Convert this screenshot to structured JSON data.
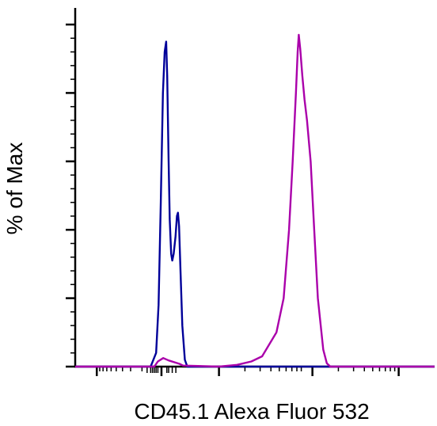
{
  "chart_data": {
    "type": "line",
    "xlabel": "CD45.1 Alexa Fluor 532",
    "ylabel": "% of Max",
    "x_scale": "biexponential",
    "ylim": [
      0,
      100
    ],
    "grid": false,
    "series": [
      {
        "color": "#000099",
        "points": [
          [
            0.0,
            0
          ],
          [
            0.18,
            0
          ],
          [
            0.21,
            0
          ],
          [
            0.225,
            4
          ],
          [
            0.232,
            18
          ],
          [
            0.238,
            48
          ],
          [
            0.244,
            80
          ],
          [
            0.249,
            92
          ],
          [
            0.253,
            95
          ],
          [
            0.256,
            85
          ],
          [
            0.26,
            60
          ],
          [
            0.263,
            43
          ],
          [
            0.267,
            33
          ],
          [
            0.27,
            31
          ],
          [
            0.274,
            33
          ],
          [
            0.279,
            38
          ],
          [
            0.283,
            44
          ],
          [
            0.286,
            45
          ],
          [
            0.289,
            41
          ],
          [
            0.293,
            28
          ],
          [
            0.298,
            12
          ],
          [
            0.305,
            2
          ],
          [
            0.312,
            0
          ],
          [
            1.0,
            0
          ]
        ]
      },
      {
        "color": "#AA00AA",
        "points": [
          [
            0.0,
            0
          ],
          [
            0.22,
            0
          ],
          [
            0.23,
            1.5
          ],
          [
            0.245,
            2.5
          ],
          [
            0.26,
            1.8
          ],
          [
            0.29,
            0.8
          ],
          [
            0.3,
            0.3
          ],
          [
            0.4,
            0
          ],
          [
            0.45,
            0.5
          ],
          [
            0.49,
            1.5
          ],
          [
            0.52,
            3
          ],
          [
            0.56,
            10
          ],
          [
            0.58,
            20
          ],
          [
            0.595,
            40
          ],
          [
            0.605,
            60
          ],
          [
            0.614,
            80
          ],
          [
            0.619,
            92
          ],
          [
            0.622,
            97
          ],
          [
            0.626,
            93
          ],
          [
            0.632,
            85
          ],
          [
            0.638,
            78
          ],
          [
            0.645,
            72
          ],
          [
            0.655,
            60
          ],
          [
            0.665,
            40
          ],
          [
            0.675,
            20
          ],
          [
            0.69,
            5
          ],
          [
            0.7,
            1
          ],
          [
            0.71,
            0
          ],
          [
            1.0,
            0
          ]
        ]
      }
    ]
  }
}
